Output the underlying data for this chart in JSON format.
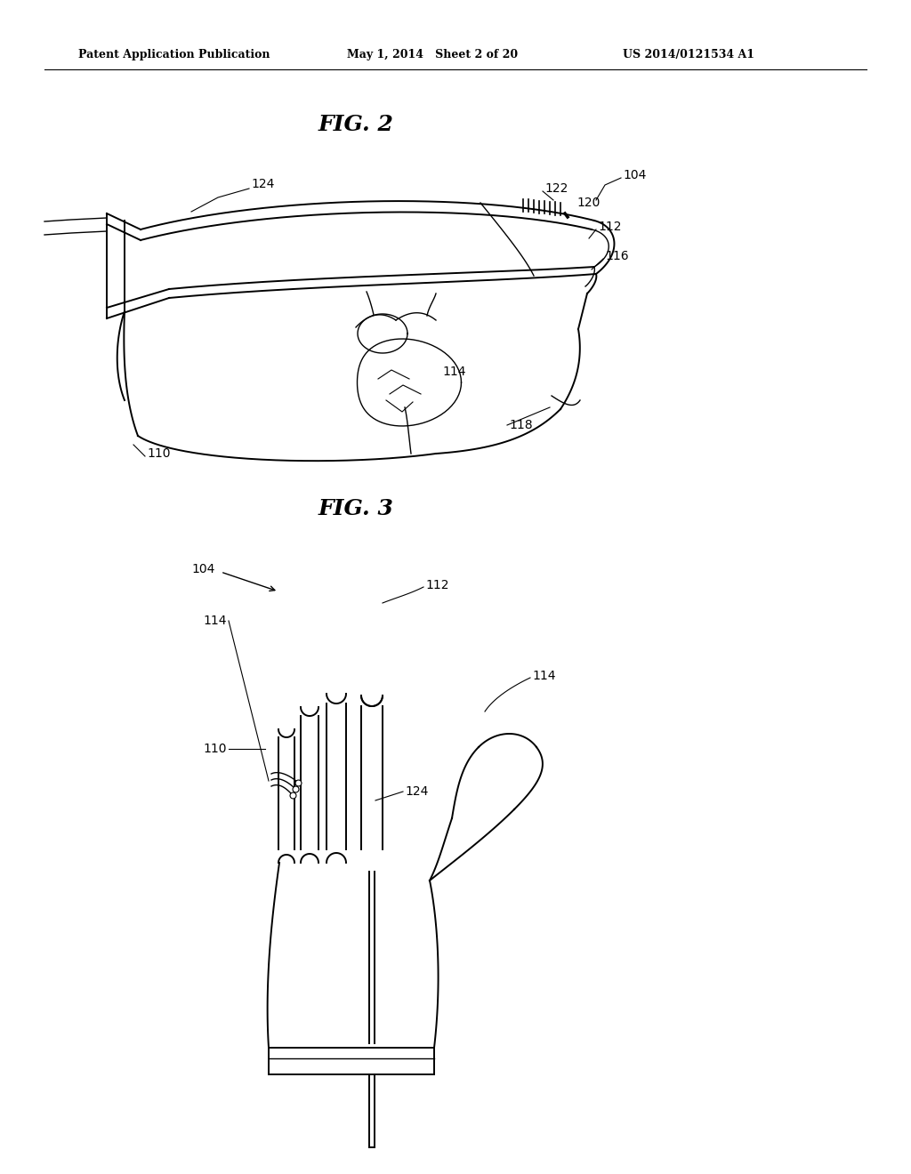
{
  "bg_color": "#ffffff",
  "line_color": "#000000",
  "header_left": "Patent Application Publication",
  "header_center": "May 1, 2014   Sheet 2 of 20",
  "header_right": "US 2014/0121534 A1",
  "fig2_title": "FIG. 2",
  "fig3_title": "FIG. 3",
  "label_fs": 10,
  "header_fs": 9
}
